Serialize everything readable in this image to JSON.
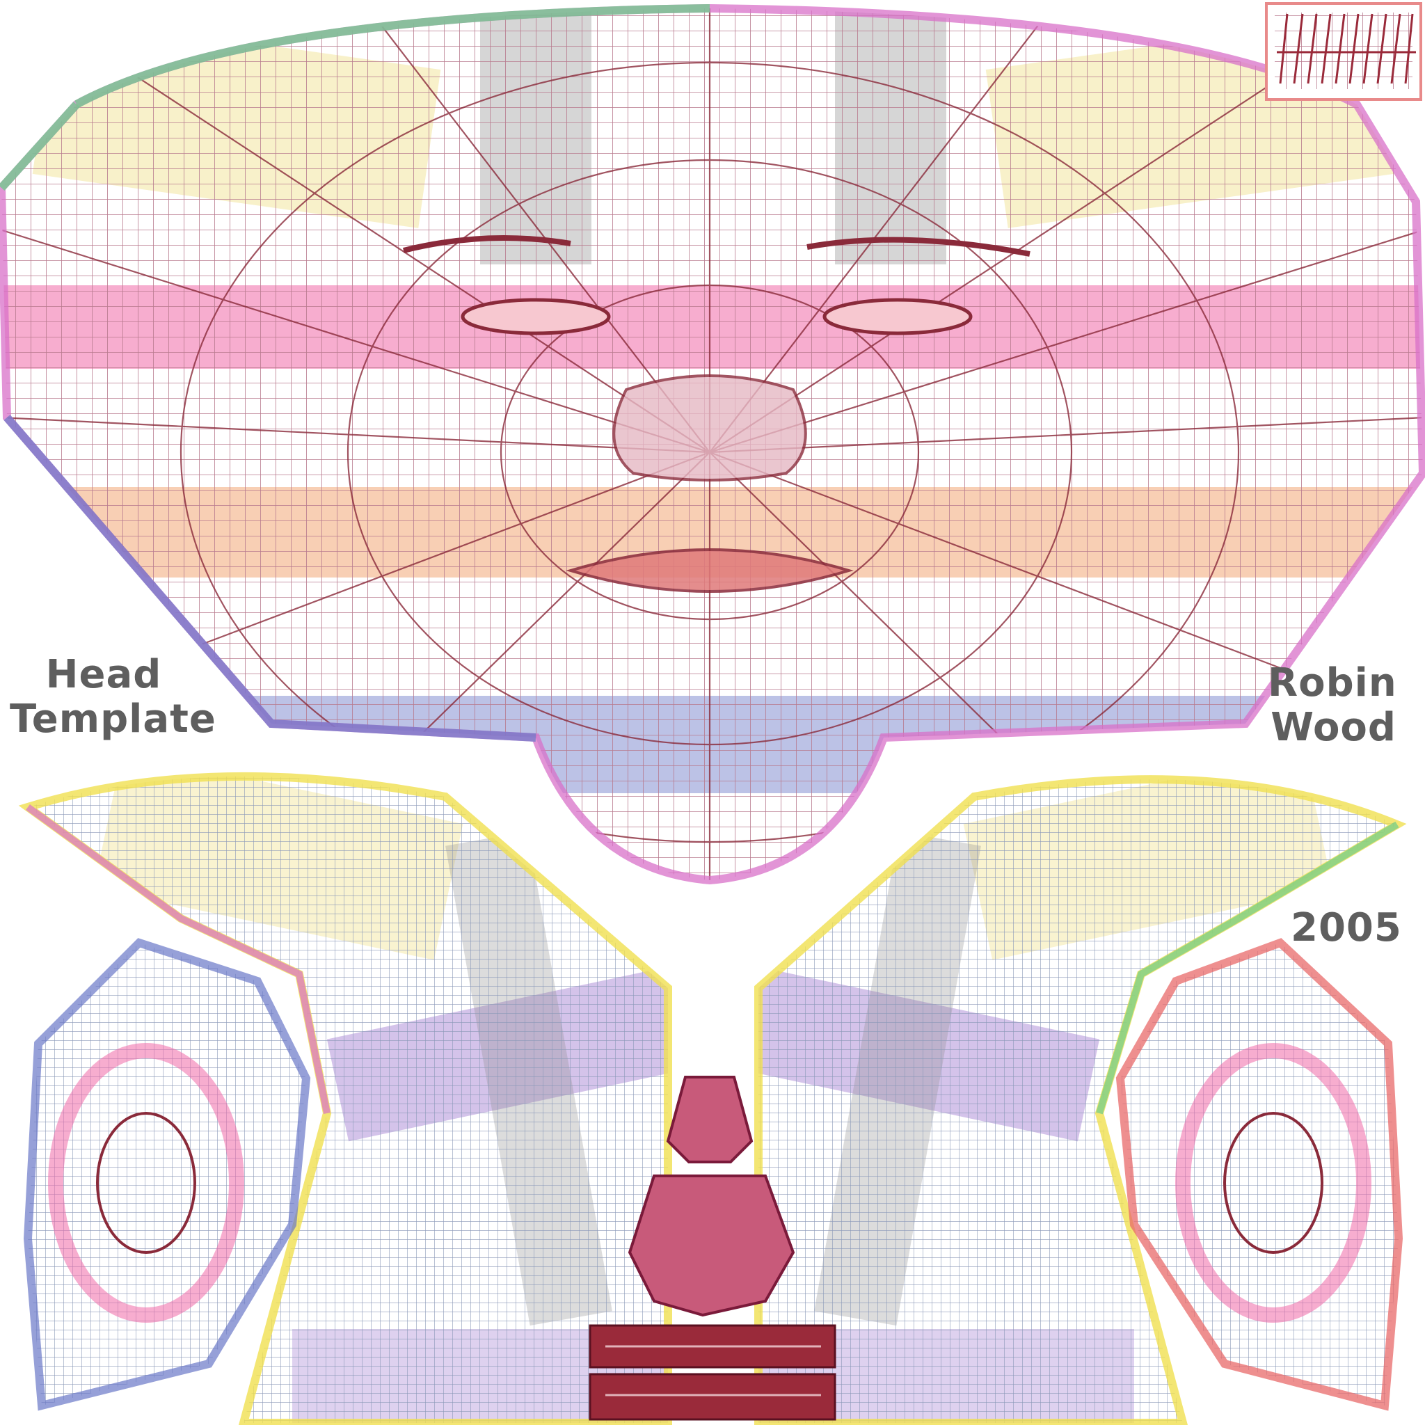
{
  "template": {
    "title_line1": "Head",
    "title_line2": "Template",
    "author_line1": "Robin",
    "author_line2": "Wood",
    "year": "2005"
  },
  "colors": {
    "wire": "#8a2a3a",
    "wire_light": "#a86a8a",
    "pink_band": "#f06aa8",
    "orange_band": "#f2a06a",
    "yellow_band": "#efe08a",
    "gray_band": "#8a8a8a",
    "purple_band": "#a07ad0",
    "blue_band": "#6a78c8",
    "green_edge": "#6ccc8a",
    "magenta_edge": "#d870c8",
    "yellow_edge": "#f0e050",
    "red_edge": "#e86a6a",
    "cyan_edge": "#8adcd8",
    "teeth": "#9a2a3a"
  }
}
